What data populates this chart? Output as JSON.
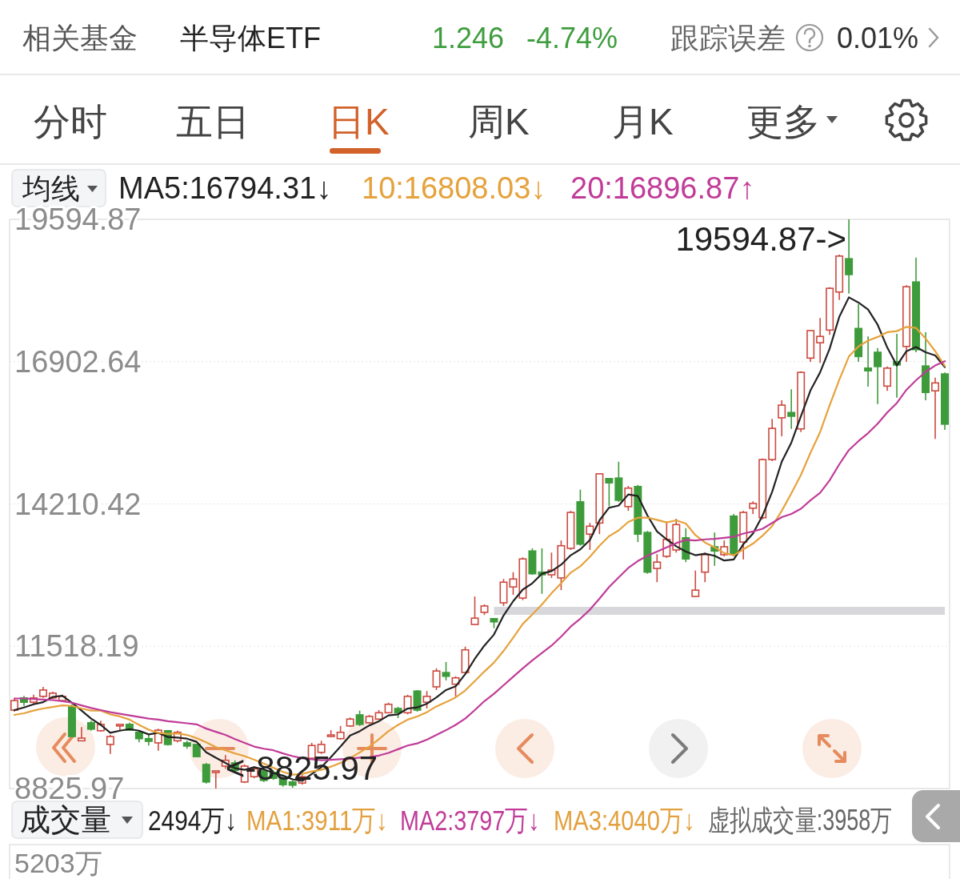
{
  "chart_data": {
    "type": "candlestick",
    "categories": [
      null,
      null,
      null,
      null,
      null,
      null,
      null,
      null,
      null,
      null,
      null,
      null,
      null,
      null,
      null,
      null,
      null,
      null,
      null,
      null,
      null,
      null,
      null,
      null,
      null,
      null,
      null,
      null,
      null,
      null,
      null,
      null,
      null,
      null,
      null,
      null,
      null,
      null,
      null,
      null,
      null,
      null,
      null,
      null,
      null,
      null,
      null,
      null,
      null,
      null,
      null,
      null,
      null,
      null,
      null,
      null,
      null,
      null,
      null,
      null,
      null,
      null,
      null,
      null,
      null,
      null,
      null,
      null,
      null,
      null,
      null,
      null,
      null,
      null,
      null,
      null,
      null,
      null,
      null,
      null,
      null,
      null,
      null,
      null,
      null,
      null,
      null,
      null,
      null,
      null,
      null,
      null,
      null,
      null,
      null,
      null,
      null,
      null
    ],
    "ohlc": [
      [
        10310,
        10540,
        10280,
        10490
      ],
      [
        10540,
        10580,
        10390,
        10460
      ],
      [
        10460,
        10600,
        10420,
        10540
      ],
      [
        10570,
        10750,
        10540,
        10690
      ],
      [
        10540,
        10660,
        10520,
        10630
      ],
      [
        10490,
        10600,
        10460,
        10570
      ],
      [
        10370,
        10420,
        9800,
        9810
      ],
      [
        9730,
        9990,
        9720,
        9780
      ],
      [
        10070,
        10110,
        9920,
        9950
      ],
      [
        9920,
        10110,
        9900,
        10040
      ],
      [
        9660,
        9840,
        9480,
        9810
      ],
      [
        10010,
        10040,
        9930,
        10040
      ],
      [
        10040,
        10070,
        9920,
        9930
      ],
      [
        9890,
        9930,
        9700,
        9770
      ],
      [
        9770,
        9840,
        9640,
        9720
      ],
      [
        9690,
        9960,
        9540,
        9930
      ],
      [
        9920,
        9930,
        9640,
        9660
      ],
      [
        9730,
        9920,
        9700,
        9890
      ],
      [
        9690,
        9730,
        9580,
        9630
      ],
      [
        9660,
        9670,
        9420,
        9430
      ],
      [
        9280,
        9310,
        8920,
        8950
      ],
      [
        9130,
        9160,
        8825.97,
        9160
      ],
      [
        9250,
        9460,
        9200,
        9360
      ],
      [
        9310,
        9360,
        9140,
        9170
      ],
      [
        8950,
        9280,
        8930,
        9250
      ],
      [
        9050,
        9250,
        9020,
        9200
      ],
      [
        9160,
        9200,
        8950,
        8980
      ],
      [
        9130,
        9170,
        8990,
        9020
      ],
      [
        9010,
        9050,
        8860,
        8900
      ],
      [
        8950,
        8980,
        8840,
        8890
      ],
      [
        8930,
        9080,
        8900,
        9050
      ],
      [
        9400,
        9690,
        9390,
        9640
      ],
      [
        9510,
        9730,
        9480,
        9660
      ],
      [
        9810,
        9930,
        9800,
        9840
      ],
      [
        9770,
        10010,
        9750,
        9890
      ],
      [
        10010,
        10170,
        9990,
        10140
      ],
      [
        10220,
        10300,
        10010,
        10040
      ],
      [
        10070,
        10220,
        10050,
        10190
      ],
      [
        10140,
        10310,
        10130,
        10260
      ],
      [
        10260,
        10450,
        10250,
        10420
      ],
      [
        10340,
        10370,
        10160,
        10260
      ],
      [
        10260,
        10600,
        10230,
        10570
      ],
      [
        10670,
        10690,
        10280,
        10310
      ],
      [
        10460,
        10670,
        10340,
        10570
      ],
      [
        10750,
        11100,
        10690,
        11050
      ],
      [
        11020,
        11220,
        10870,
        10950
      ],
      [
        10800,
        10950,
        10570,
        10920
      ],
      [
        11020,
        11510,
        11010,
        11450
      ],
      [
        11930,
        12460,
        11920,
        12050
      ],
      [
        12160,
        12310,
        12110,
        12280
      ],
      [
        12040,
        12050,
        11860,
        11980
      ],
      [
        12340,
        12790,
        12280,
        12730
      ],
      [
        12640,
        12920,
        12490,
        12790
      ],
      [
        12430,
        13200,
        12390,
        13170
      ],
      [
        13320,
        13370,
        12870,
        12890
      ],
      [
        12920,
        13370,
        12510,
        12870
      ],
      [
        12870,
        13290,
        12810,
        12960
      ],
      [
        12810,
        13520,
        12580,
        13420
      ],
      [
        13370,
        14080,
        13340,
        14050
      ],
      [
        14250,
        14480,
        13420,
        13450
      ],
      [
        13640,
        13850,
        13340,
        13790
      ],
      [
        13850,
        14790,
        13640,
        14780
      ],
      [
        14690,
        14690,
        14170,
        14610
      ],
      [
        14700,
        15010,
        14250,
        14280
      ],
      [
        14160,
        14550,
        14080,
        14510
      ],
      [
        14540,
        14570,
        13490,
        13640
      ],
      [
        13670,
        13700,
        12890,
        12920
      ],
      [
        12990,
        13260,
        12730,
        13110
      ],
      [
        13220,
        13880,
        13190,
        13540
      ],
      [
        13340,
        13930,
        13290,
        13820
      ],
      [
        13570,
        13750,
        13110,
        13170
      ],
      [
        12460,
        12950,
        12450,
        12580
      ],
      [
        12920,
        13290,
        12730,
        13250
      ],
      [
        13400,
        13670,
        13040,
        13320
      ],
      [
        13250,
        13520,
        13220,
        13400
      ],
      [
        13980,
        14020,
        13220,
        13250
      ],
      [
        13490,
        14080,
        13160,
        14050
      ],
      [
        14130,
        14260,
        14020,
        14220
      ],
      [
        13950,
        15070,
        13920,
        15050
      ],
      [
        15050,
        15820,
        15020,
        15640
      ],
      [
        15840,
        16170,
        15490,
        16080
      ],
      [
        15940,
        16380,
        15630,
        15870
      ],
      [
        15630,
        16720,
        15570,
        16700
      ],
      [
        16970,
        17500,
        16900,
        17490
      ],
      [
        17260,
        17730,
        16880,
        17380
      ],
      [
        17500,
        18310,
        17410,
        18290
      ],
      [
        18220,
        18930,
        18070,
        18900
      ],
      [
        18850,
        19594.87,
        18190,
        18550
      ],
      [
        17530,
        17990,
        16900,
        17000
      ],
      [
        16780,
        17380,
        16430,
        16730
      ],
      [
        17080,
        17160,
        16100,
        16810
      ],
      [
        16440,
        16810,
        16350,
        16780
      ],
      [
        16900,
        17430,
        16220,
        16840
      ],
      [
        17190,
        18350,
        16900,
        18320
      ],
      [
        18410,
        18870,
        17080,
        17130
      ],
      [
        16820,
        17460,
        16170,
        16320
      ],
      [
        16350,
        16600,
        15440,
        16500
      ],
      [
        16670,
        16700,
        15610,
        15720
      ]
    ],
    "series": [
      {
        "name": "MA5:16794.31↓",
        "type": "line",
        "color": "#222222",
        "values": [
          10310,
          10360,
          10420,
          10460,
          10560,
          10580,
          10450,
          10300,
          10150,
          10030,
          9880,
          9920,
          9950,
          9920,
          9850,
          9880,
          9800,
          9790,
          9770,
          9710,
          9510,
          9410,
          9310,
          9210,
          9180,
          9230,
          9190,
          9120,
          9070,
          9000,
          8970,
          9100,
          9230,
          9420,
          9620,
          9830,
          9910,
          10020,
          10100,
          10210,
          10230,
          10340,
          10360,
          10430,
          10550,
          10690,
          10760,
          10990,
          11280,
          11530,
          11740,
          12100,
          12370,
          12590,
          12710,
          12890,
          12940,
          13060,
          13240,
          13350,
          13530,
          13900,
          14140,
          14180,
          14390,
          14360,
          13990,
          13690,
          13540,
          13410,
          13310,
          13240,
          13270,
          13230,
          13140,
          13160,
          13450,
          13650,
          13990,
          14440,
          15010,
          15370,
          15870,
          16360,
          16700,
          17150,
          17750,
          18120,
          18020,
          17890,
          17600,
          17170,
          16830,
          17100,
          17180,
          17080,
          17020,
          16800
        ]
      },
      {
        "name": "10:16808.03↓",
        "type": "line",
        "color": "#e6a23c",
        "values": [
          10220,
          10250,
          10300,
          10340,
          10370,
          10400,
          10390,
          10340,
          10300,
          10300,
          10230,
          10190,
          10130,
          10030,
          9940,
          9880,
          9860,
          9870,
          9840,
          9780,
          9700,
          9610,
          9550,
          9490,
          9440,
          9370,
          9300,
          9220,
          9140,
          9090,
          9100,
          9150,
          9180,
          9240,
          9310,
          9400,
          9510,
          9620,
          9760,
          9910,
          10030,
          10130,
          10190,
          10270,
          10380,
          10460,
          10550,
          10680,
          10860,
          11040,
          11210,
          11430,
          11680,
          11940,
          12120,
          12310,
          12520,
          12710,
          12910,
          13030,
          13210,
          13420,
          13600,
          13710,
          13870,
          13950,
          13950,
          13910,
          13860,
          13900,
          13840,
          13620,
          13480,
          13390,
          13280,
          13240,
          13350,
          13460,
          13610,
          13790,
          14080,
          14410,
          14760,
          15180,
          15570,
          16080,
          16560,
          17000,
          17190,
          17300,
          17370,
          17460,
          17480,
          17560,
          17540,
          17340,
          17100,
          16820
        ]
      },
      {
        "name": "20:16896.87↑",
        "type": "line",
        "color": "#c03c98",
        "values": [
          10530,
          10530,
          10520,
          10510,
          10500,
          10480,
          10450,
          10400,
          10350,
          10310,
          10270,
          10240,
          10210,
          10180,
          10150,
          10130,
          10100,
          10080,
          10060,
          10040,
          9960,
          9900,
          9840,
          9760,
          9690,
          9620,
          9580,
          9550,
          9490,
          9440,
          9400,
          9380,
          9360,
          9370,
          9380,
          9390,
          9410,
          9420,
          9450,
          9500,
          9570,
          9640,
          9680,
          9750,
          9840,
          9930,
          10030,
          10150,
          10310,
          10480,
          10620,
          10780,
          10940,
          11100,
          11250,
          11390,
          11530,
          11700,
          11890,
          12040,
          12210,
          12420,
          12640,
          12820,
          13000,
          13130,
          13230,
          13310,
          13390,
          13470,
          13530,
          13520,
          13540,
          13550,
          13570,
          13590,
          13650,
          13690,
          13740,
          13850,
          13960,
          14020,
          14120,
          14280,
          14420,
          14660,
          14960,
          15230,
          15400,
          15550,
          15730,
          15940,
          16120,
          16370,
          16550,
          16710,
          16830,
          16910
        ]
      },
      {
        "type": "line",
        "color": "#d8d8dc",
        "values": [
          null,
          null,
          null,
          null,
          null,
          null,
          null,
          null,
          null,
          null,
          null,
          null,
          null,
          null,
          null,
          null,
          null,
          null,
          null,
          null,
          null,
          null,
          null,
          null,
          null,
          null,
          null,
          null,
          null,
          null,
          null,
          null,
          null,
          null,
          null,
          null,
          null,
          null,
          null,
          null,
          null,
          null,
          null,
          null,
          null,
          null,
          null,
          null,
          null,
          null,
          12190,
          12190,
          12190,
          12190,
          12190,
          12190,
          12190,
          12190,
          12190,
          12190,
          12190,
          12190,
          12190,
          12190,
          12190,
          12190,
          12190,
          12190,
          12190,
          12190,
          12190,
          12190,
          12190,
          12190,
          12190,
          12190,
          12190,
          12190,
          12190,
          12190,
          12190,
          12190,
          12190,
          12190,
          12190,
          12190,
          12190,
          12190,
          12190,
          12190,
          12190,
          12190,
          12190,
          12190,
          12190,
          12190,
          12190,
          12190
        ]
      }
    ],
    "ylim": [
      8825.97,
      19594.87
    ],
    "yticks": [
      8825.97,
      11518.19,
      14210.42,
      16902.64,
      19594.87
    ],
    "grid": "y",
    "tick_labels": "y",
    "legend": "top",
    "annotations": [
      "相关基金",
      "半导体ETF",
      "1.246",
      "-4.74%",
      "跟踪误差",
      "0.01%",
      "分时",
      "五日",
      "日K",
      "周K",
      "月K",
      "更多",
      "均线",
      "成交量",
      "2494万↓",
      "MA1:3911万↓",
      "MA2:3797万↓",
      "MA3:4040万↓",
      "虚拟成交量:3958万",
      "5203万",
      "19594.87->",
      "<-8825.97"
    ]
  }
}
